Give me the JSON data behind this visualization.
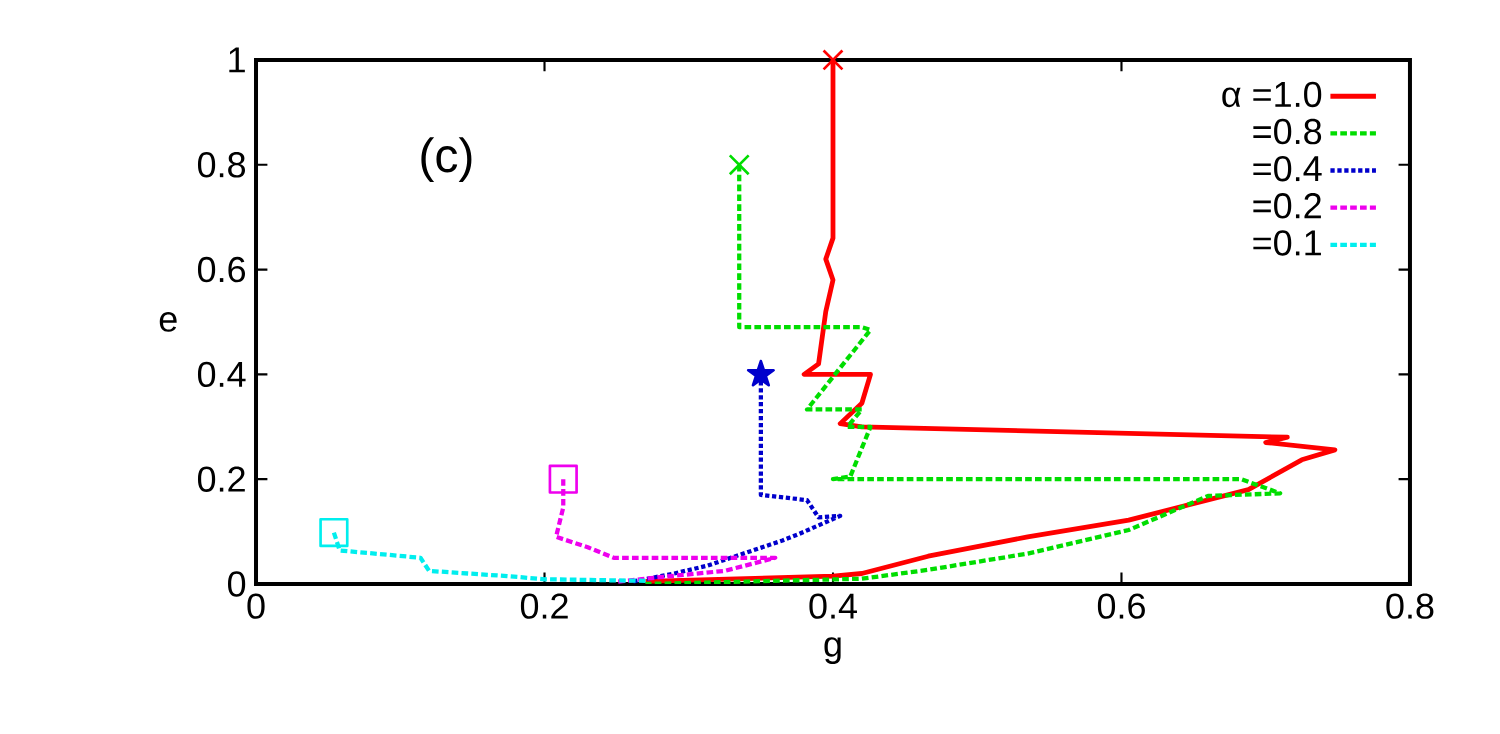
{
  "chart_data": {
    "type": "line",
    "xlabel": "g",
    "ylabel": "e",
    "annotations": [
      "(c)"
    ],
    "xlim": [
      0,
      0.8
    ],
    "ylim": [
      0,
      1
    ],
    "xticks": [
      0,
      0.2,
      0.4,
      0.6,
      0.8
    ],
    "yticks": [
      0,
      0.2,
      0.4,
      0.6,
      0.8,
      1
    ],
    "legend": "top right",
    "grid": false,
    "series": [
      {
        "name": "α =1.0",
        "color": "#ff0000",
        "line_style": "solid",
        "x": [
          0.4,
          0.4,
          0.395,
          0.4,
          0.395,
          0.39,
          0.38,
          0.426,
          0.42,
          0.405,
          0.42,
          0.715,
          0.7,
          0.748,
          0.725,
          0.688,
          0.605,
          0.535,
          0.466,
          0.42,
          0.4,
          0.27
        ],
        "values": [
          1.0,
          0.66,
          0.62,
          0.58,
          0.52,
          0.42,
          0.4,
          0.4,
          0.345,
          0.306,
          0.3,
          0.28,
          0.27,
          0.256,
          0.237,
          0.18,
          0.122,
          0.09,
          0.053,
          0.02,
          0.015,
          0.005
        ]
      },
      {
        "name": "=0.8",
        "color": "#00dd00",
        "line_style": "dashed",
        "x": [
          0.335,
          0.335,
          0.42,
          0.426,
          0.382,
          0.42,
          0.41,
          0.426,
          0.412,
          0.4,
          0.683,
          0.71,
          0.66,
          0.605,
          0.535,
          0.466,
          0.42,
          0.27
        ],
        "values": [
          0.8,
          0.49,
          0.49,
          0.485,
          0.333,
          0.333,
          0.3,
          0.3,
          0.205,
          0.2,
          0.2,
          0.173,
          0.168,
          0.103,
          0.058,
          0.027,
          0.01,
          0.0
        ]
      },
      {
        "name": "=0.4",
        "color": "#0000cc",
        "line_style": "dotted",
        "x": [
          0.35,
          0.35,
          0.382,
          0.39,
          0.405,
          0.376,
          0.365,
          0.313,
          0.29,
          0.26
        ],
        "values": [
          0.4,
          0.17,
          0.16,
          0.127,
          0.13,
          0.095,
          0.083,
          0.035,
          0.02,
          0.004
        ]
      },
      {
        "name": "=0.2",
        "color": "#ee00ee",
        "line_style": "dashed",
        "x": [
          0.213,
          0.213,
          0.208,
          0.23,
          0.248,
          0.36,
          0.325,
          0.28,
          0.25
        ],
        "values": [
          0.2,
          0.146,
          0.09,
          0.07,
          0.05,
          0.05,
          0.025,
          0.013,
          0.004
        ]
      },
      {
        "name": "=0.1",
        "color": "#00eeee",
        "line_style": "dashed",
        "x": [
          0.054,
          0.058,
          0.114,
          0.12,
          0.174,
          0.2,
          0.27
        ],
        "values": [
          0.098,
          0.064,
          0.05,
          0.025,
          0.015,
          0.009,
          0.006
        ]
      },
      {
        "type": "scatter",
        "color": "#ff0000",
        "marker": "cross",
        "x": [
          0.4
        ],
        "values": [
          1.0
        ]
      },
      {
        "type": "scatter",
        "color": "#00dd00",
        "marker": "cross",
        "x": [
          0.335
        ],
        "values": [
          0.8
        ]
      },
      {
        "type": "scatter",
        "color": "#0000cc",
        "marker": "star",
        "x": [
          0.35
        ],
        "values": [
          0.4
        ]
      },
      {
        "type": "scatter",
        "color": "#ee00ee",
        "marker": "square",
        "x": [
          0.213
        ],
        "values": [
          0.2
        ]
      },
      {
        "type": "scatter",
        "color": "#00eeee",
        "marker": "square",
        "x": [
          0.054
        ],
        "values": [
          0.098
        ]
      }
    ]
  }
}
